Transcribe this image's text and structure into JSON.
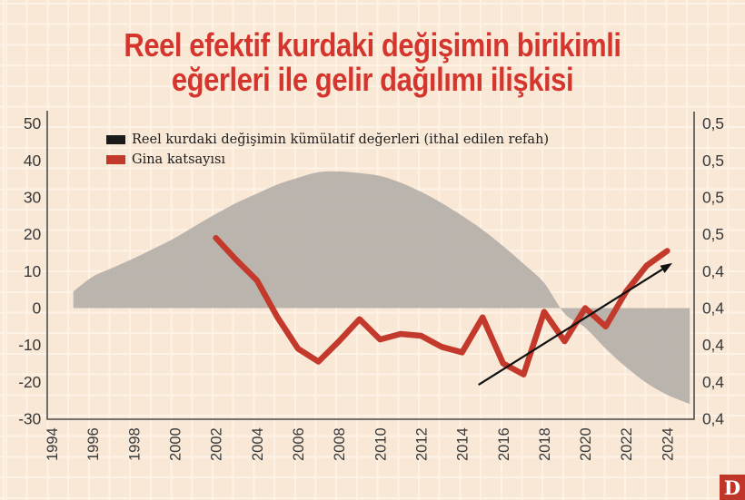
{
  "title": {
    "line1": "Reel efektif kurdaki değişimin birikimli",
    "line2": "eğerleri ile gelir dağılımı ilişkisi",
    "color": "#d4362e"
  },
  "legend": {
    "items": [
      {
        "label": "Reel kurdaki değişimin kümülatif değerleri (ithal edilen refah)",
        "color": "#1a1a1a",
        "series": "cumulative"
      },
      {
        "label": "Gina katsayısı",
        "color": "#c33a2c",
        "series": "gini"
      }
    ]
  },
  "logo": {
    "letter": "D",
    "background": "#bf3629",
    "color": "#ffffff"
  },
  "colors": {
    "background": "#fae8d7",
    "grid_line": "#fdf2e6",
    "area_fill": "#b1aca7",
    "line_red": "#c33a2c",
    "axis": "#4b4b4b",
    "arrow": "#111111"
  },
  "chart_data": {
    "type": "area+line",
    "title": "Reel efektif kurdaki değişimin birikimli eğerleri ile gelir dağılımı ilişkisi",
    "grid": true,
    "legend_position": "top-left",
    "x_axis": {
      "range": [
        1994,
        2025.3
      ],
      "tick_labels": [
        "1994",
        "1996",
        "1998",
        "2000",
        "2002",
        "2004",
        "2006",
        "2008",
        "2010",
        "2012",
        "2014",
        "2016",
        "2018",
        "2020",
        "2022",
        "2024"
      ]
    },
    "left_axis": {
      "range": [
        -30,
        53
      ],
      "ticks": [
        50,
        40,
        30,
        20,
        10,
        0,
        -10,
        -20,
        -30
      ]
    },
    "right_axis": {
      "range": [
        0.36,
        0.526
      ],
      "tick_labels": [
        "0,5",
        "0,5",
        "0,5",
        "0,5",
        "0,4",
        "0,4",
        "0,4",
        "0,4",
        "0,4"
      ]
    },
    "series": [
      {
        "name": "Reel kurdaki değişimin kümülatif değerleri (ithal edilen refah)",
        "type": "area",
        "axis": "left",
        "color": "#b1aca7",
        "x": [
          1995.05,
          1996,
          1997,
          1998,
          1999,
          2000,
          2001,
          2002,
          2003,
          2004,
          2005,
          2006,
          2007,
          2008,
          2009,
          2010,
          2011,
          2012,
          2013,
          2014,
          2015,
          2016,
          2017,
          2018,
          2019,
          2020,
          2021,
          2022,
          2023,
          2024,
          2025.1
        ],
        "values": [
          4.5,
          8.5,
          11,
          13.5,
          16.2,
          19,
          22.3,
          25.5,
          28.5,
          31,
          33.5,
          35.3,
          36.8,
          37,
          36.6,
          35.8,
          34,
          31.5,
          28.5,
          25,
          21.2,
          16.8,
          12,
          6.8,
          -1.5,
          -5.3,
          -11,
          -16,
          -20.3,
          -23.5,
          -26
        ]
      },
      {
        "name": "Gina katsayısı",
        "type": "line",
        "axis": "right",
        "color": "#c33a2c",
        "x": [
          2002,
          2003,
          2004,
          2005,
          2006,
          2007,
          2008,
          2009,
          2010,
          2011,
          2012,
          2013,
          2014,
          2015,
          2016,
          2017,
          2018,
          2019,
          2020,
          2021,
          2022,
          2023,
          2024
        ],
        "values": [
          0.458,
          0.446,
          0.435,
          0.415,
          0.398,
          0.391,
          0.402,
          0.414,
          0.403,
          0.406,
          0.405,
          0.399,
          0.396,
          0.415,
          0.39,
          0.384,
          0.418,
          0.402,
          0.42,
          0.41,
          0.429,
          0.443,
          0.451
        ]
      }
    ],
    "annotations": {
      "trend_arrow": {
        "from_year": 2014.8,
        "from_value_left": -20.8,
        "to_year": 2024.25,
        "to_value_left": 12.2,
        "color": "#111111"
      }
    }
  }
}
